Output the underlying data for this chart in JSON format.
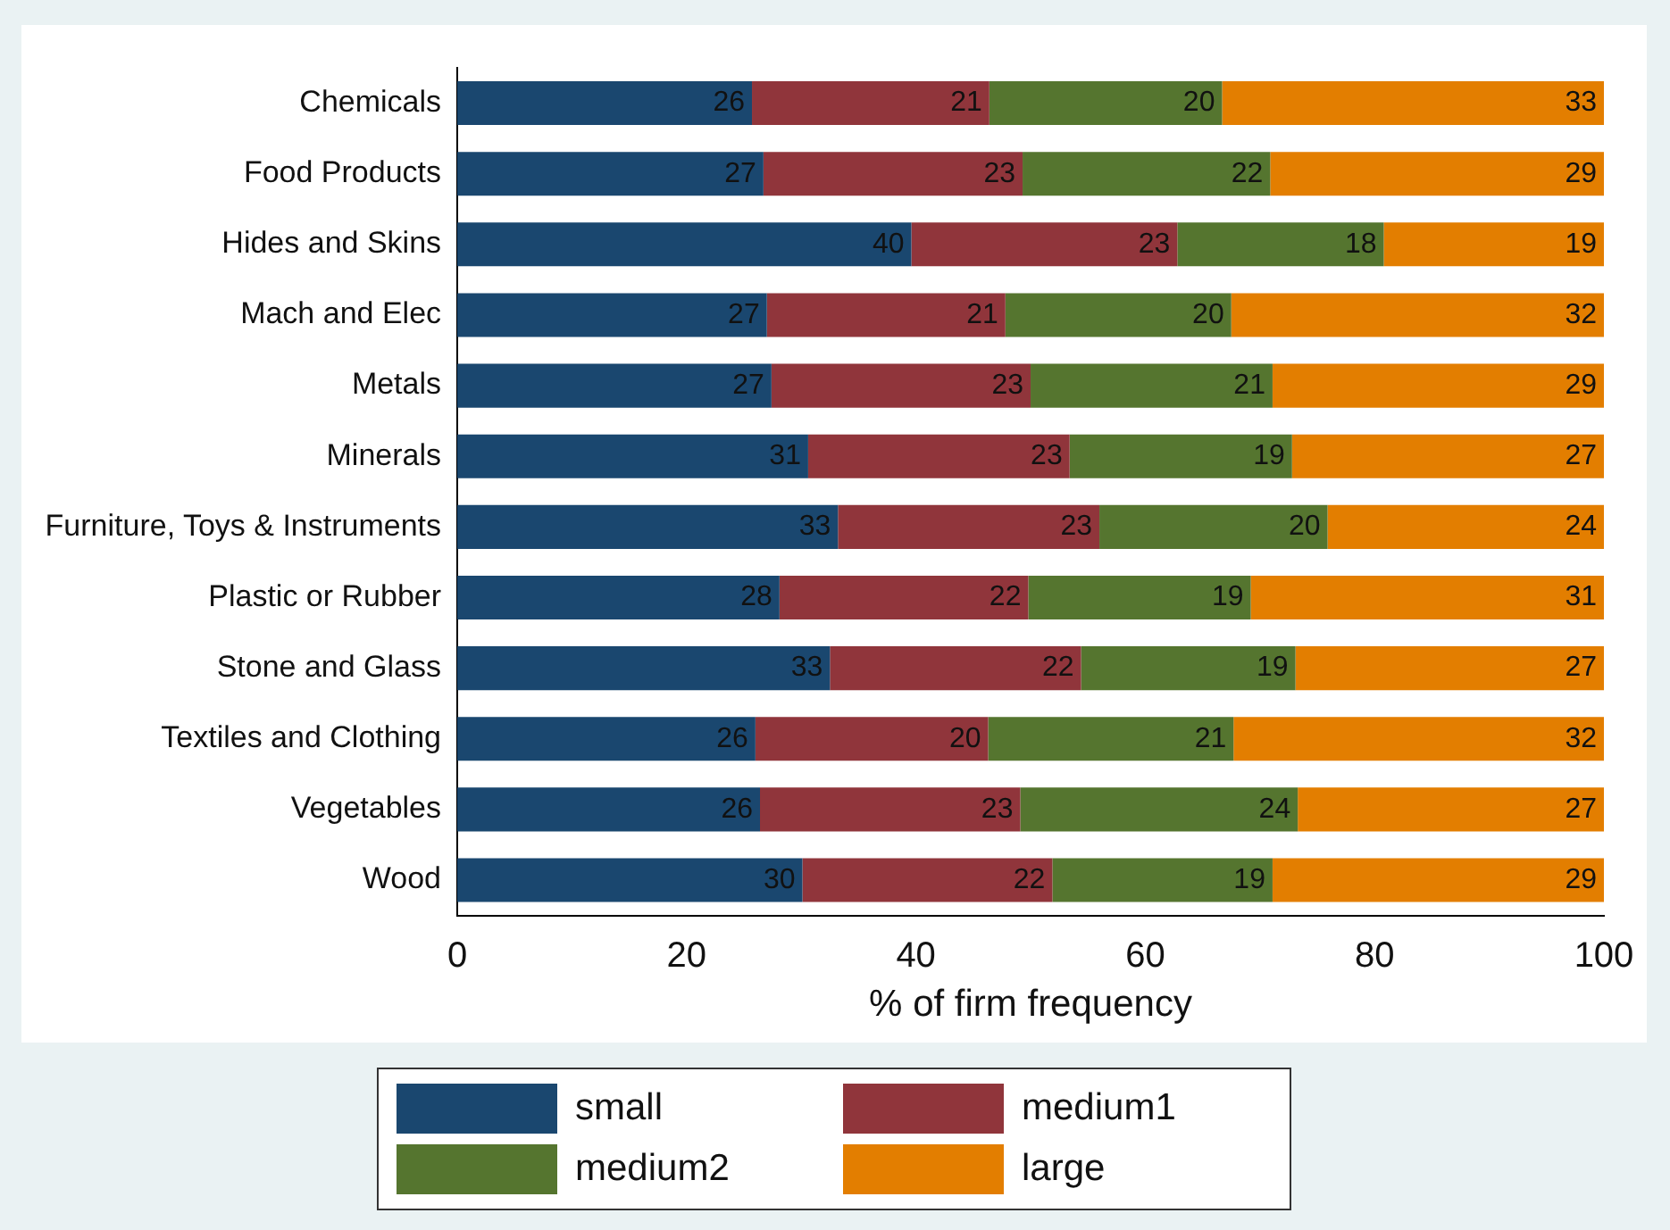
{
  "chart_data": {
    "type": "bar",
    "orientation": "horizontal",
    "stacked": true,
    "xlabel": "% of firm frequency",
    "categories": [
      "Chemicals",
      "Food Products",
      "Hides and Skins",
      "Mach and Elec",
      "Metals",
      "Minerals",
      "Furniture, Toys & Instruments",
      "Plastic or Rubber",
      "Stone and Glass",
      "Textiles and Clothing",
      "Vegetables",
      "Wood"
    ],
    "series": [
      {
        "name": "small",
        "color": "#1a476f",
        "values": [
          25.7,
          26.7,
          39.6,
          27.0,
          27.4,
          30.6,
          33.2,
          28.1,
          32.5,
          26.0,
          26.4,
          30.1
        ],
        "value_labels": [
          "26",
          "27",
          "40",
          "27",
          "27",
          "31",
          "33",
          "28",
          "33",
          "26",
          "26",
          "30"
        ]
      },
      {
        "name": "medium1",
        "color": "#90353b",
        "values": [
          20.7,
          22.6,
          23.2,
          20.8,
          22.6,
          22.8,
          22.8,
          21.7,
          21.9,
          20.3,
          22.7,
          21.8
        ],
        "value_labels": [
          "21",
          "23",
          "23",
          "21",
          "23",
          "23",
          "23",
          "22",
          "22",
          "20",
          "23",
          "22"
        ]
      },
      {
        "name": "medium2",
        "color": "#55752f",
        "values": [
          20.3,
          21.6,
          18.0,
          19.7,
          21.1,
          19.4,
          19.9,
          19.4,
          18.7,
          21.4,
          24.2,
          19.2
        ],
        "value_labels": [
          "20",
          "22",
          "18",
          "20",
          "21",
          "19",
          "20",
          "19",
          "19",
          "21",
          "24",
          "19"
        ]
      },
      {
        "name": "large",
        "color": "#e37e00",
        "values": [
          33.3,
          29.1,
          19.2,
          32.5,
          28.9,
          27.2,
          24.1,
          30.8,
          26.9,
          32.3,
          26.7,
          28.9
        ],
        "value_labels": [
          "33",
          "29",
          "19",
          "32",
          "29",
          "27",
          "24",
          "31",
          "27",
          "32",
          "27",
          "29"
        ]
      }
    ],
    "xlim": [
      0,
      100
    ],
    "xticks": [
      0,
      20,
      40,
      60,
      80,
      100
    ],
    "legend": "bottom"
  }
}
